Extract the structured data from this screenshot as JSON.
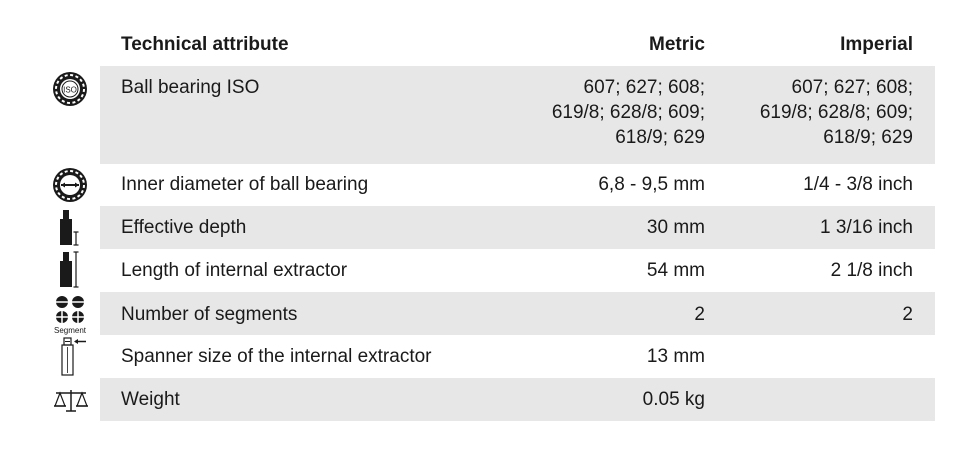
{
  "header": {
    "attribute": "Technical attribute",
    "metric": "Metric",
    "imperial": "Imperial"
  },
  "rows": [
    {
      "icon": "iso-ball-bearing-icon",
      "icon_text": "ISO",
      "label": "Ball bearing ISO",
      "metric": "607; 627; 608;\n619/8; 628/8; 609;\n618/9; 629",
      "imperial": "607; 627; 608;\n619/8; 628/8; 609;\n618/9; 629"
    },
    {
      "icon": "ball-bearing-inner-diameter-icon",
      "label": "Inner diameter of ball bearing",
      "metric": "6,8 - 9,5 mm",
      "imperial": "1/4 - 3/8 inch"
    },
    {
      "icon": "effective-depth-icon",
      "label": "Effective depth",
      "metric": "30 mm",
      "imperial": "1 3/16 inch"
    },
    {
      "icon": "extractor-length-icon",
      "label": "Length of internal extractor",
      "metric": "54 mm",
      "imperial": "2 1/8 inch"
    },
    {
      "icon": "segments-icon",
      "icon_text": "Segment",
      "label": "Number of segments",
      "metric": "2",
      "imperial": "2"
    },
    {
      "icon": "spanner-size-icon",
      "label": "Spanner size of the internal extractor",
      "metric": "13 mm",
      "imperial": ""
    },
    {
      "icon": "weight-scale-icon",
      "label": "Weight",
      "metric": "0.05 kg",
      "imperial": ""
    }
  ]
}
